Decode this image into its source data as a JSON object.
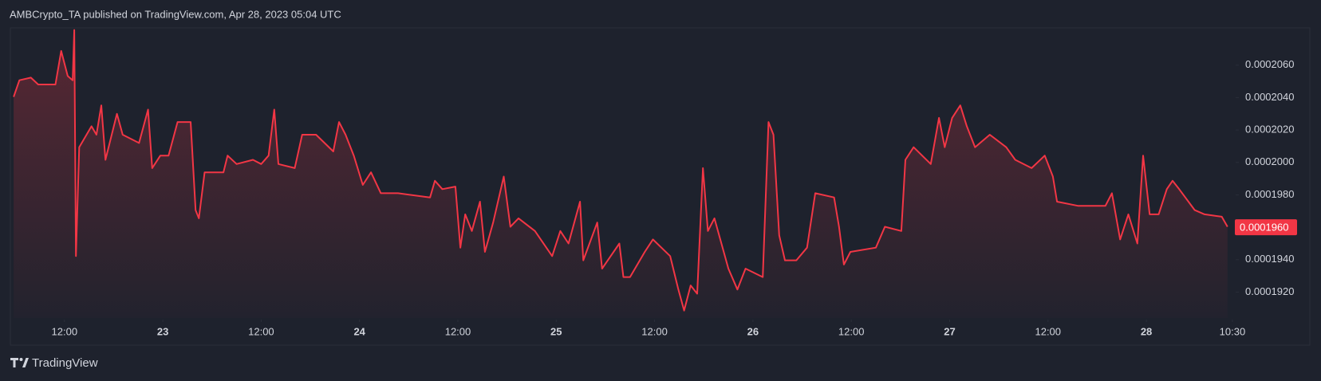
{
  "header": "AMBCrypto_TA published on TradingView.com, Apr 28, 2023 05:04 UTC",
  "footer": {
    "brand": "TradingView"
  },
  "chart_data": {
    "type": "line",
    "color": "#f23645",
    "x": [
      5.8,
      6.5,
      7.9,
      8.8,
      10.9,
      11.6,
      12.4,
      13.0,
      13.2,
      13.4,
      13.8,
      15.3,
      15.9,
      16.5,
      17.0,
      18.4,
      19.1,
      21.1,
      22.2,
      22.7,
      23.7,
      24.7,
      25.8,
      27.4,
      28.0,
      28.4,
      29.1,
      31.4,
      31.9,
      33.0,
      35.0,
      36.0,
      36.9,
      37.6,
      38.1,
      40.1,
      41.0,
      42.7,
      44.8,
      45.5,
      46.3,
      47.3,
      48.4,
      49.4,
      50.6,
      52.7,
      56.6,
      57.2,
      58.1,
      59.7,
      60.3,
      60.9,
      61.7,
      62.7,
      63.3,
      64.3,
      65.6,
      66.4,
      67.4,
      69.4,
      71.5,
      72.5,
      73.5,
      74.9,
      75.3,
      77.0,
      77.6,
      79.7,
      80.2,
      81.0,
      82.8,
      83.8,
      85.9,
      86.9,
      87.6,
      88.4,
      89.2,
      89.9,
      90.5,
      91.3,
      93.0,
      94.1,
      95.1,
      97.2,
      97.9,
      98.5,
      99.2,
      99.9,
      101.3,
      102.6,
      103.6,
      105.9,
      106.5,
      107.1,
      107.9,
      111.0,
      112.1,
      114.1,
      114.6,
      115.6,
      117.7,
      118.7,
      119.4,
      120.3,
      121.3,
      122.1,
      123.1,
      124.9,
      126.9,
      128.0,
      130.0,
      131.6,
      132.6,
      133.1,
      135.7,
      139.0,
      139.8,
      140.8,
      141.8,
      142.9,
      143.6,
      144.4,
      145.5,
      146.5,
      147.2,
      148.0,
      149.9,
      151.1,
      153.2,
      153.9
    ],
    "values": [
      0.00020404,
      0.00020507,
      0.00020523,
      0.00020481,
      0.00020481,
      0.00020688,
      0.00020533,
      0.00020507,
      0.00020817,
      0.00019422,
      0.00020094,
      0.00020223,
      0.00020171,
      0.00020352,
      0.00020016,
      0.000203,
      0.00020171,
      0.0002012,
      0.00020326,
      0.00019965,
      0.00020042,
      0.00020042,
      0.00020249,
      0.00020249,
      0.00019706,
      0.00019655,
      0.00019939,
      0.00019939,
      0.00020042,
      0.0001999,
      0.00020016,
      0.0001999,
      0.00020042,
      0.00020326,
      0.0001999,
      0.00019965,
      0.00020171,
      0.00020171,
      0.00020068,
      0.00020249,
      0.00020171,
      0.00020042,
      0.00019861,
      0.00019939,
      0.0001981,
      0.0001981,
      0.00019784,
      0.00019887,
      0.00019835,
      0.00019851,
      0.00019474,
      0.0001968,
      0.00019577,
      0.00019758,
      0.00019448,
      0.00019629,
      0.00019913,
      0.00019603,
      0.00019655,
      0.00019577,
      0.00019422,
      0.00019577,
      0.000195,
      0.00019758,
      0.00019396,
      0.00019629,
      0.00019345,
      0.000195,
      0.00019293,
      0.00019293,
      0.00019448,
      0.00019525,
      0.00019422,
      0.00019216,
      0.00019086,
      0.00019241,
      0.0001919,
      0.00019965,
      0.00019577,
      0.00019655,
      0.00019345,
      0.00019216,
      0.00019345,
      0.00019293,
      0.00020249,
      0.00020171,
      0.00019551,
      0.00019396,
      0.00019396,
      0.00019474,
      0.0001981,
      0.00019784,
      0.00019603,
      0.0001937,
      0.00019448,
      0.00019474,
      0.00019603,
      0.00019577,
      0.00020016,
      0.00020094,
      0.0001999,
      0.00020275,
      0.00020094,
      0.00020275,
      0.00020352,
      0.00020223,
      0.00020094,
      0.00020171,
      0.00020094,
      0.00020016,
      0.00019965,
      0.00020042,
      0.00019913,
      0.00019758,
      0.00019732,
      0.00019732,
      0.0001981,
      0.00019525,
      0.0001968,
      0.000195,
      0.00020042,
      0.0001968,
      0.0001968,
      0.00019835,
      0.00019887,
      0.00019835,
      0.00019706,
      0.0001968,
      0.00019665,
      0.00019603
    ],
    "xlim": [
      5.4,
      154.7
    ],
    "ylim": [
      0.0001904,
      0.0002083
    ],
    "xticks": [
      {
        "value": 12,
        "label": "12:00"
      },
      {
        "value": 24,
        "label": "23"
      },
      {
        "value": 36,
        "label": "12:00"
      },
      {
        "value": 48,
        "label": "24"
      },
      {
        "value": 60,
        "label": "12:00"
      },
      {
        "value": 72,
        "label": "25"
      },
      {
        "value": 84,
        "label": "12:00"
      },
      {
        "value": 96,
        "label": "26"
      },
      {
        "value": 108,
        "label": "12:00"
      },
      {
        "value": 120,
        "label": "27"
      },
      {
        "value": 132,
        "label": "12:00"
      },
      {
        "value": 144,
        "label": "28"
      },
      {
        "value": 154.5,
        "label": "10:30"
      }
    ],
    "yticks": [
      {
        "value": 0.000206,
        "label": "0.0002060"
      },
      {
        "value": 0.000204,
        "label": "0.0002040"
      },
      {
        "value": 0.000202,
        "label": "0.0002020"
      },
      {
        "value": 0.0002,
        "label": "0.0002000"
      },
      {
        "value": 0.000198,
        "label": "0.0001980"
      },
      {
        "value": 0.000194,
        "label": "0.0001940"
      },
      {
        "value": 0.000192,
        "label": "0.0001920"
      }
    ],
    "last_price": {
      "value": 0.000196,
      "label": "0.0001960"
    }
  }
}
